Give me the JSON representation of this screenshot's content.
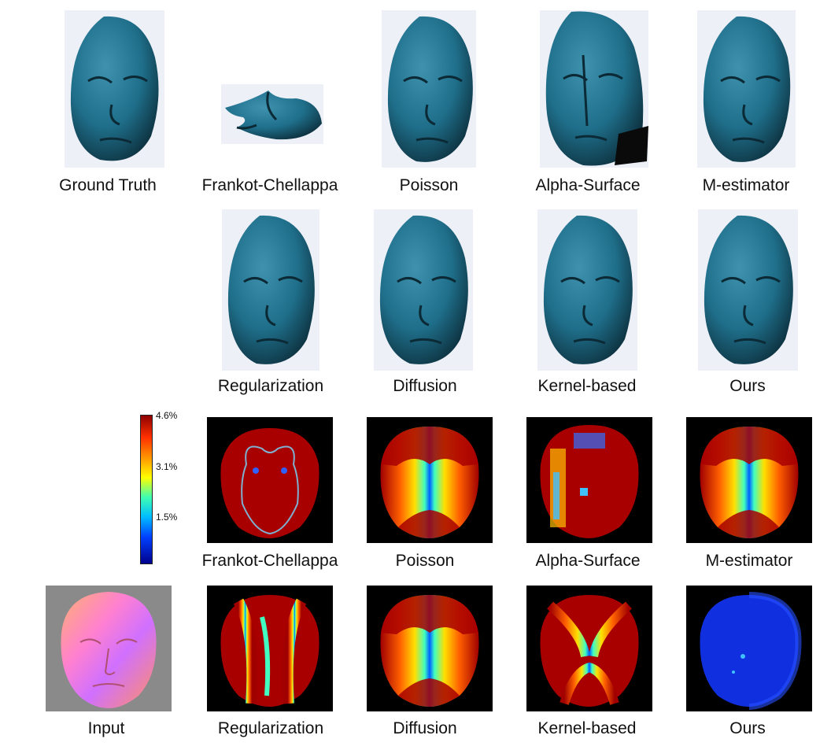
{
  "row1_labels": [
    "Ground Truth",
    "Frankot-Chellappa",
    "Poisson",
    "Alpha-Surface",
    "M-estimator"
  ],
  "row2_labels": [
    "Regularization",
    "Diffusion",
    "Kernel-based",
    "Ours"
  ],
  "row3_labels": [
    "Frankot-Chellappa",
    "Poisson",
    "Alpha-Surface",
    "M-estimator"
  ],
  "row4_labels": [
    "Input",
    "Regularization",
    "Diffusion",
    "Kernel-based",
    "Ours"
  ],
  "colorbar": {
    "ticks": [
      "4.6%",
      "3.1%",
      "1.5%"
    ],
    "colors": [
      "#8b0000",
      "#ff3000",
      "#ffa000",
      "#ffff00",
      "#40ffb0",
      "#00c0ff",
      "#0040ff",
      "#00008b"
    ]
  },
  "colors": {
    "face_surface": "#1f6f8b",
    "face_dark": "#0c2f3d",
    "face_background": "#eef0f8",
    "error_high": "#a80000",
    "error_background": "#000000",
    "input_background": "#8a8a8a"
  }
}
